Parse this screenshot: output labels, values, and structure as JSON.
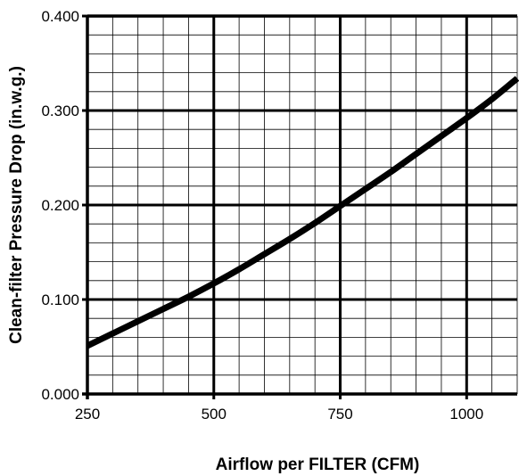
{
  "chart_data": {
    "type": "line",
    "title": "",
    "xlabel": "Airflow per FILTER (CFM)",
    "ylabel": "Clean-filter Pressure Drop (in.w.g.)",
    "xlim": [
      250,
      1100
    ],
    "ylim": [
      0,
      0.4
    ],
    "x_ticks": [
      250,
      500,
      750,
      1000
    ],
    "x_tick_labels": [
      "250",
      "500",
      "750",
      "1000"
    ],
    "y_ticks": [
      0,
      0.1,
      0.2,
      0.3,
      0.4
    ],
    "y_tick_labels": [
      "0.000",
      "0.100",
      "0.200",
      "0.300",
      "0.400"
    ],
    "grid": true,
    "x_minor_step": 50,
    "y_minor_step": 0.02,
    "line_color": "#000000",
    "series": [
      {
        "x": [
          250,
          300,
          350,
          400,
          450,
          500,
          550,
          600,
          650,
          700,
          750,
          800,
          850,
          900,
          950,
          1000,
          1050,
          1100
        ],
        "values": [
          0.051,
          0.064,
          0.077,
          0.09,
          0.103,
          0.117,
          0.132,
          0.148,
          0.164,
          0.181,
          0.199,
          0.217,
          0.235,
          0.254,
          0.273,
          0.292,
          0.312,
          0.334
        ]
      }
    ]
  }
}
